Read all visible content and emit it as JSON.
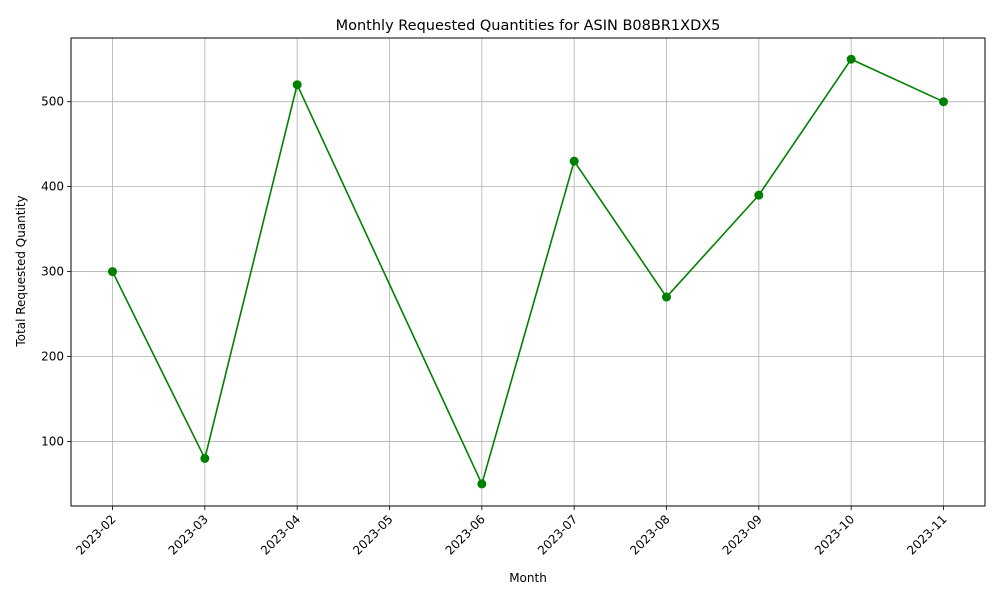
{
  "chart_data": {
    "type": "line",
    "title": "Monthly Requested Quantities for ASIN B08BR1XDX5",
    "xlabel": "Month",
    "ylabel": "Total Requested Quantity",
    "x": [
      "2023-02",
      "2023-03",
      "2023-04",
      "2023-06",
      "2023-07",
      "2023-08",
      "2023-09",
      "2023-10",
      "2023-11"
    ],
    "x_ticks": [
      "2023-02",
      "2023-03",
      "2023-04",
      "2023-05",
      "2023-06",
      "2023-07",
      "2023-08",
      "2023-09",
      "2023-10",
      "2023-11"
    ],
    "values": [
      300,
      80,
      520,
      50,
      430,
      270,
      390,
      550,
      500
    ],
    "y_ticks": [
      100,
      200,
      300,
      400,
      500
    ],
    "ylim": [
      24,
      575
    ],
    "grid": true,
    "marker": "circle",
    "color": "#008000",
    "x_tick_rotation": "45 degrees"
  }
}
